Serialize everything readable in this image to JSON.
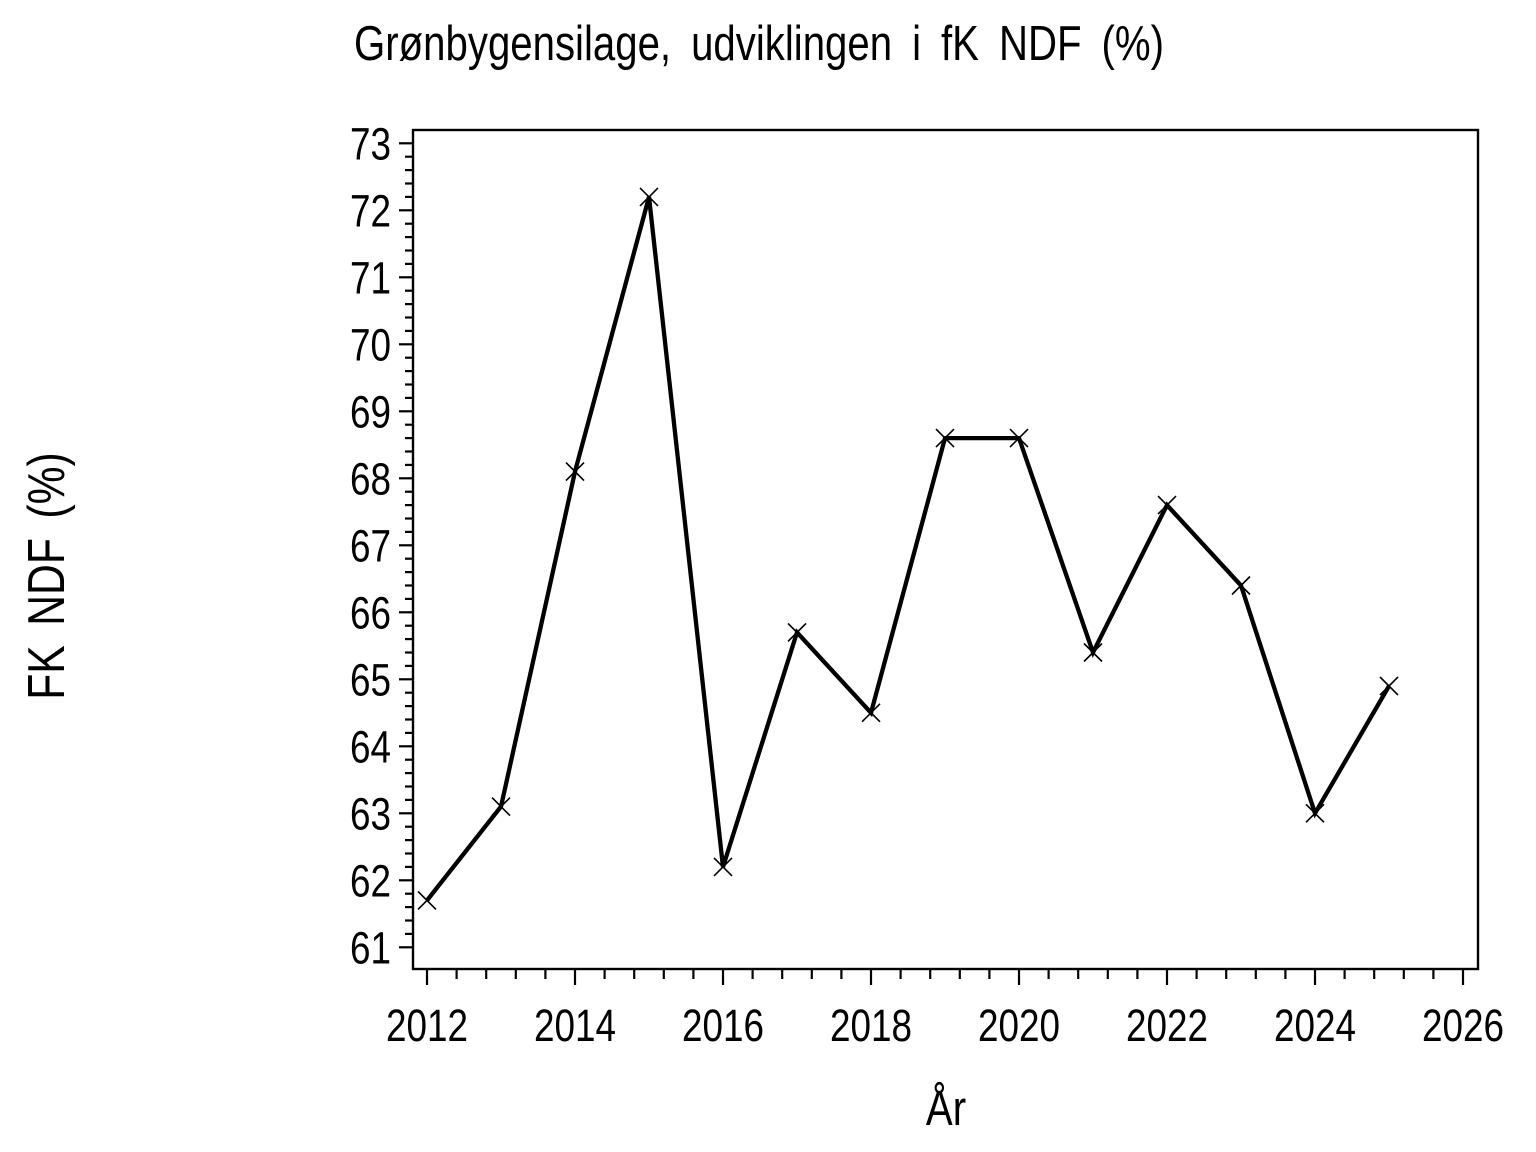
{
  "chart_data": {
    "type": "line",
    "title": "Grønbygensilage, udviklingen i fK NDF (%)",
    "xlabel": "År",
    "ylabel": "FK NDF (%)",
    "x": [
      2012,
      2013,
      2014,
      2015,
      2016,
      2017,
      2018,
      2019,
      2020,
      2021,
      2022,
      2023,
      2024,
      2025
    ],
    "series": [
      {
        "name": "fK NDF",
        "values": [
          61.7,
          63.1,
          68.1,
          72.2,
          62.2,
          65.7,
          64.5,
          68.6,
          68.6,
          65.4,
          67.6,
          66.4,
          63.0,
          64.9
        ]
      }
    ],
    "x_tick_labels": [
      2012,
      2014,
      2016,
      2018,
      2020,
      2022,
      2024,
      2026
    ],
    "y_tick_labels": [
      61,
      62,
      63,
      64,
      65,
      66,
      67,
      68,
      69,
      70,
      71,
      72,
      73
    ],
    "x_minor_step": 0.4,
    "y_minor_step": 0.2,
    "xlim": [
      2011.8,
      2026.2
    ],
    "ylim": [
      60.7,
      73.2
    ],
    "grid": false,
    "legend": false,
    "marker": "x",
    "line_color": "#000000",
    "axis_color": "#000000",
    "background": "#ffffff"
  }
}
